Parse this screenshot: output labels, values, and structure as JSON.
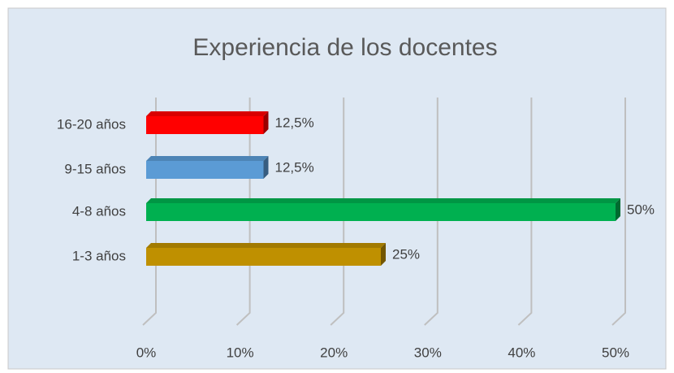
{
  "chart_data": {
    "type": "bar3d_horizontal",
    "title": "Experiencia de los docentes",
    "categories": [
      "16-20 años",
      "9-15 años",
      "4-8 años",
      "1-3 años"
    ],
    "values": [
      12.5,
      12.5,
      50,
      25
    ],
    "value_labels": [
      "12,5%",
      "12,5%",
      "50%",
      "25%"
    ],
    "colors": [
      "#ff0000",
      "#5b9bd5",
      "#00b050",
      "#bf9000"
    ],
    "xlim": [
      0,
      50
    ],
    "xticks": [
      {
        "value": 0,
        "label": "0%"
      },
      {
        "value": 10,
        "label": "10%"
      },
      {
        "value": 20,
        "label": "20%"
      },
      {
        "value": 30,
        "label": "30%"
      },
      {
        "value": 40,
        "label": "40%"
      },
      {
        "value": 50,
        "label": "50%"
      }
    ],
    "grid": true
  }
}
